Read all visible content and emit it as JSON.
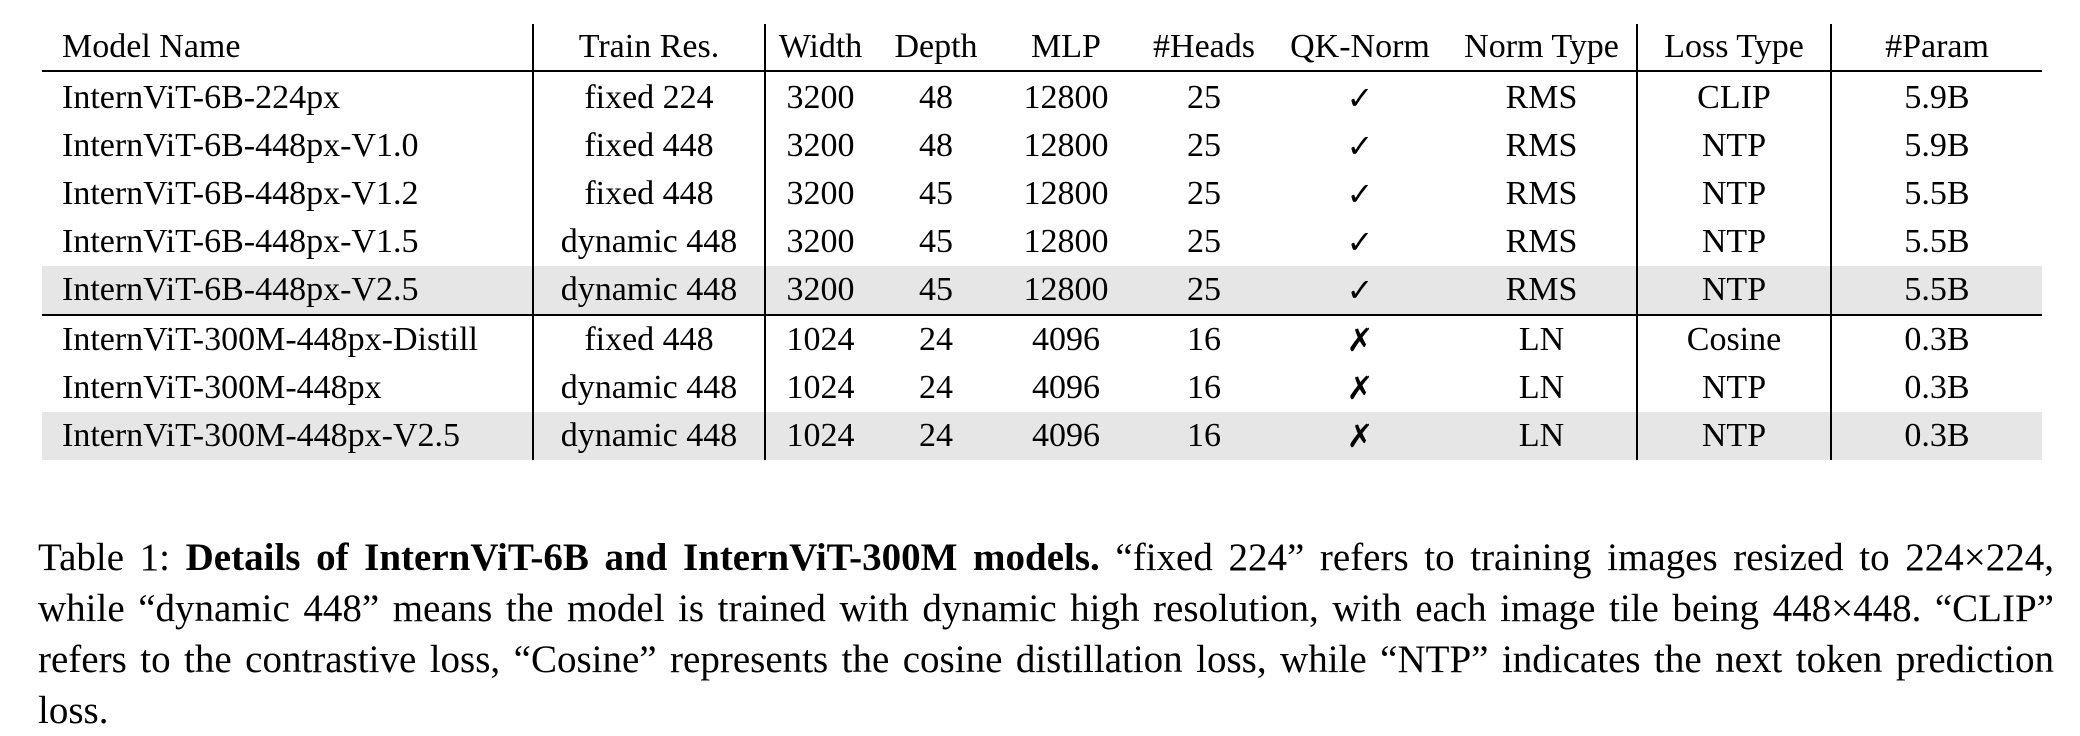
{
  "table": {
    "columns": [
      "Model Name",
      "Train Res.",
      "Width",
      "Depth",
      "MLP",
      "#Heads",
      "QK-Norm",
      "Norm Type",
      "Loss Type",
      "#Param"
    ],
    "rows": [
      [
        "InternViT-6B-224px",
        "fixed 224",
        "3200",
        "48",
        "12800",
        "25",
        "✓",
        "RMS",
        "CLIP",
        "5.9B"
      ],
      [
        "InternViT-6B-448px-V1.0",
        "fixed 448",
        "3200",
        "48",
        "12800",
        "25",
        "✓",
        "RMS",
        "NTP",
        "5.9B"
      ],
      [
        "InternViT-6B-448px-V1.2",
        "fixed 448",
        "3200",
        "45",
        "12800",
        "25",
        "✓",
        "RMS",
        "NTP",
        "5.5B"
      ],
      [
        "InternViT-6B-448px-V1.5",
        "dynamic 448",
        "3200",
        "45",
        "12800",
        "25",
        "✓",
        "RMS",
        "NTP",
        "5.5B"
      ],
      [
        "InternViT-6B-448px-V2.5",
        "dynamic 448",
        "3200",
        "45",
        "12800",
        "25",
        "✓",
        "RMS",
        "NTP",
        "5.5B"
      ],
      [
        "InternViT-300M-448px-Distill",
        "fixed 448",
        "1024",
        "24",
        "4096",
        "16",
        "✗",
        "LN",
        "Cosine",
        "0.3B"
      ],
      [
        "InternViT-300M-448px",
        "dynamic 448",
        "1024",
        "24",
        "4096",
        "16",
        "✗",
        "LN",
        "NTP",
        "0.3B"
      ],
      [
        "InternViT-300M-448px-V2.5",
        "dynamic 448",
        "1024",
        "24",
        "4096",
        "16",
        "✗",
        "LN",
        "NTP",
        "0.3B"
      ]
    ],
    "shade_color": "#e6e6e6"
  },
  "caption": {
    "label": "Table 1:",
    "title": "Details of InternViT-6B and InternViT-300M models.",
    "text": "“fixed 224” refers to training images resized to 224×224, while “dynamic 448” means the model is trained with dynamic high resolution, with each image tile being 448×448. “CLIP” refers to the contrastive loss, “Cosine” represents the cosine distillation loss, while “NTP” indicates the next token prediction loss."
  }
}
